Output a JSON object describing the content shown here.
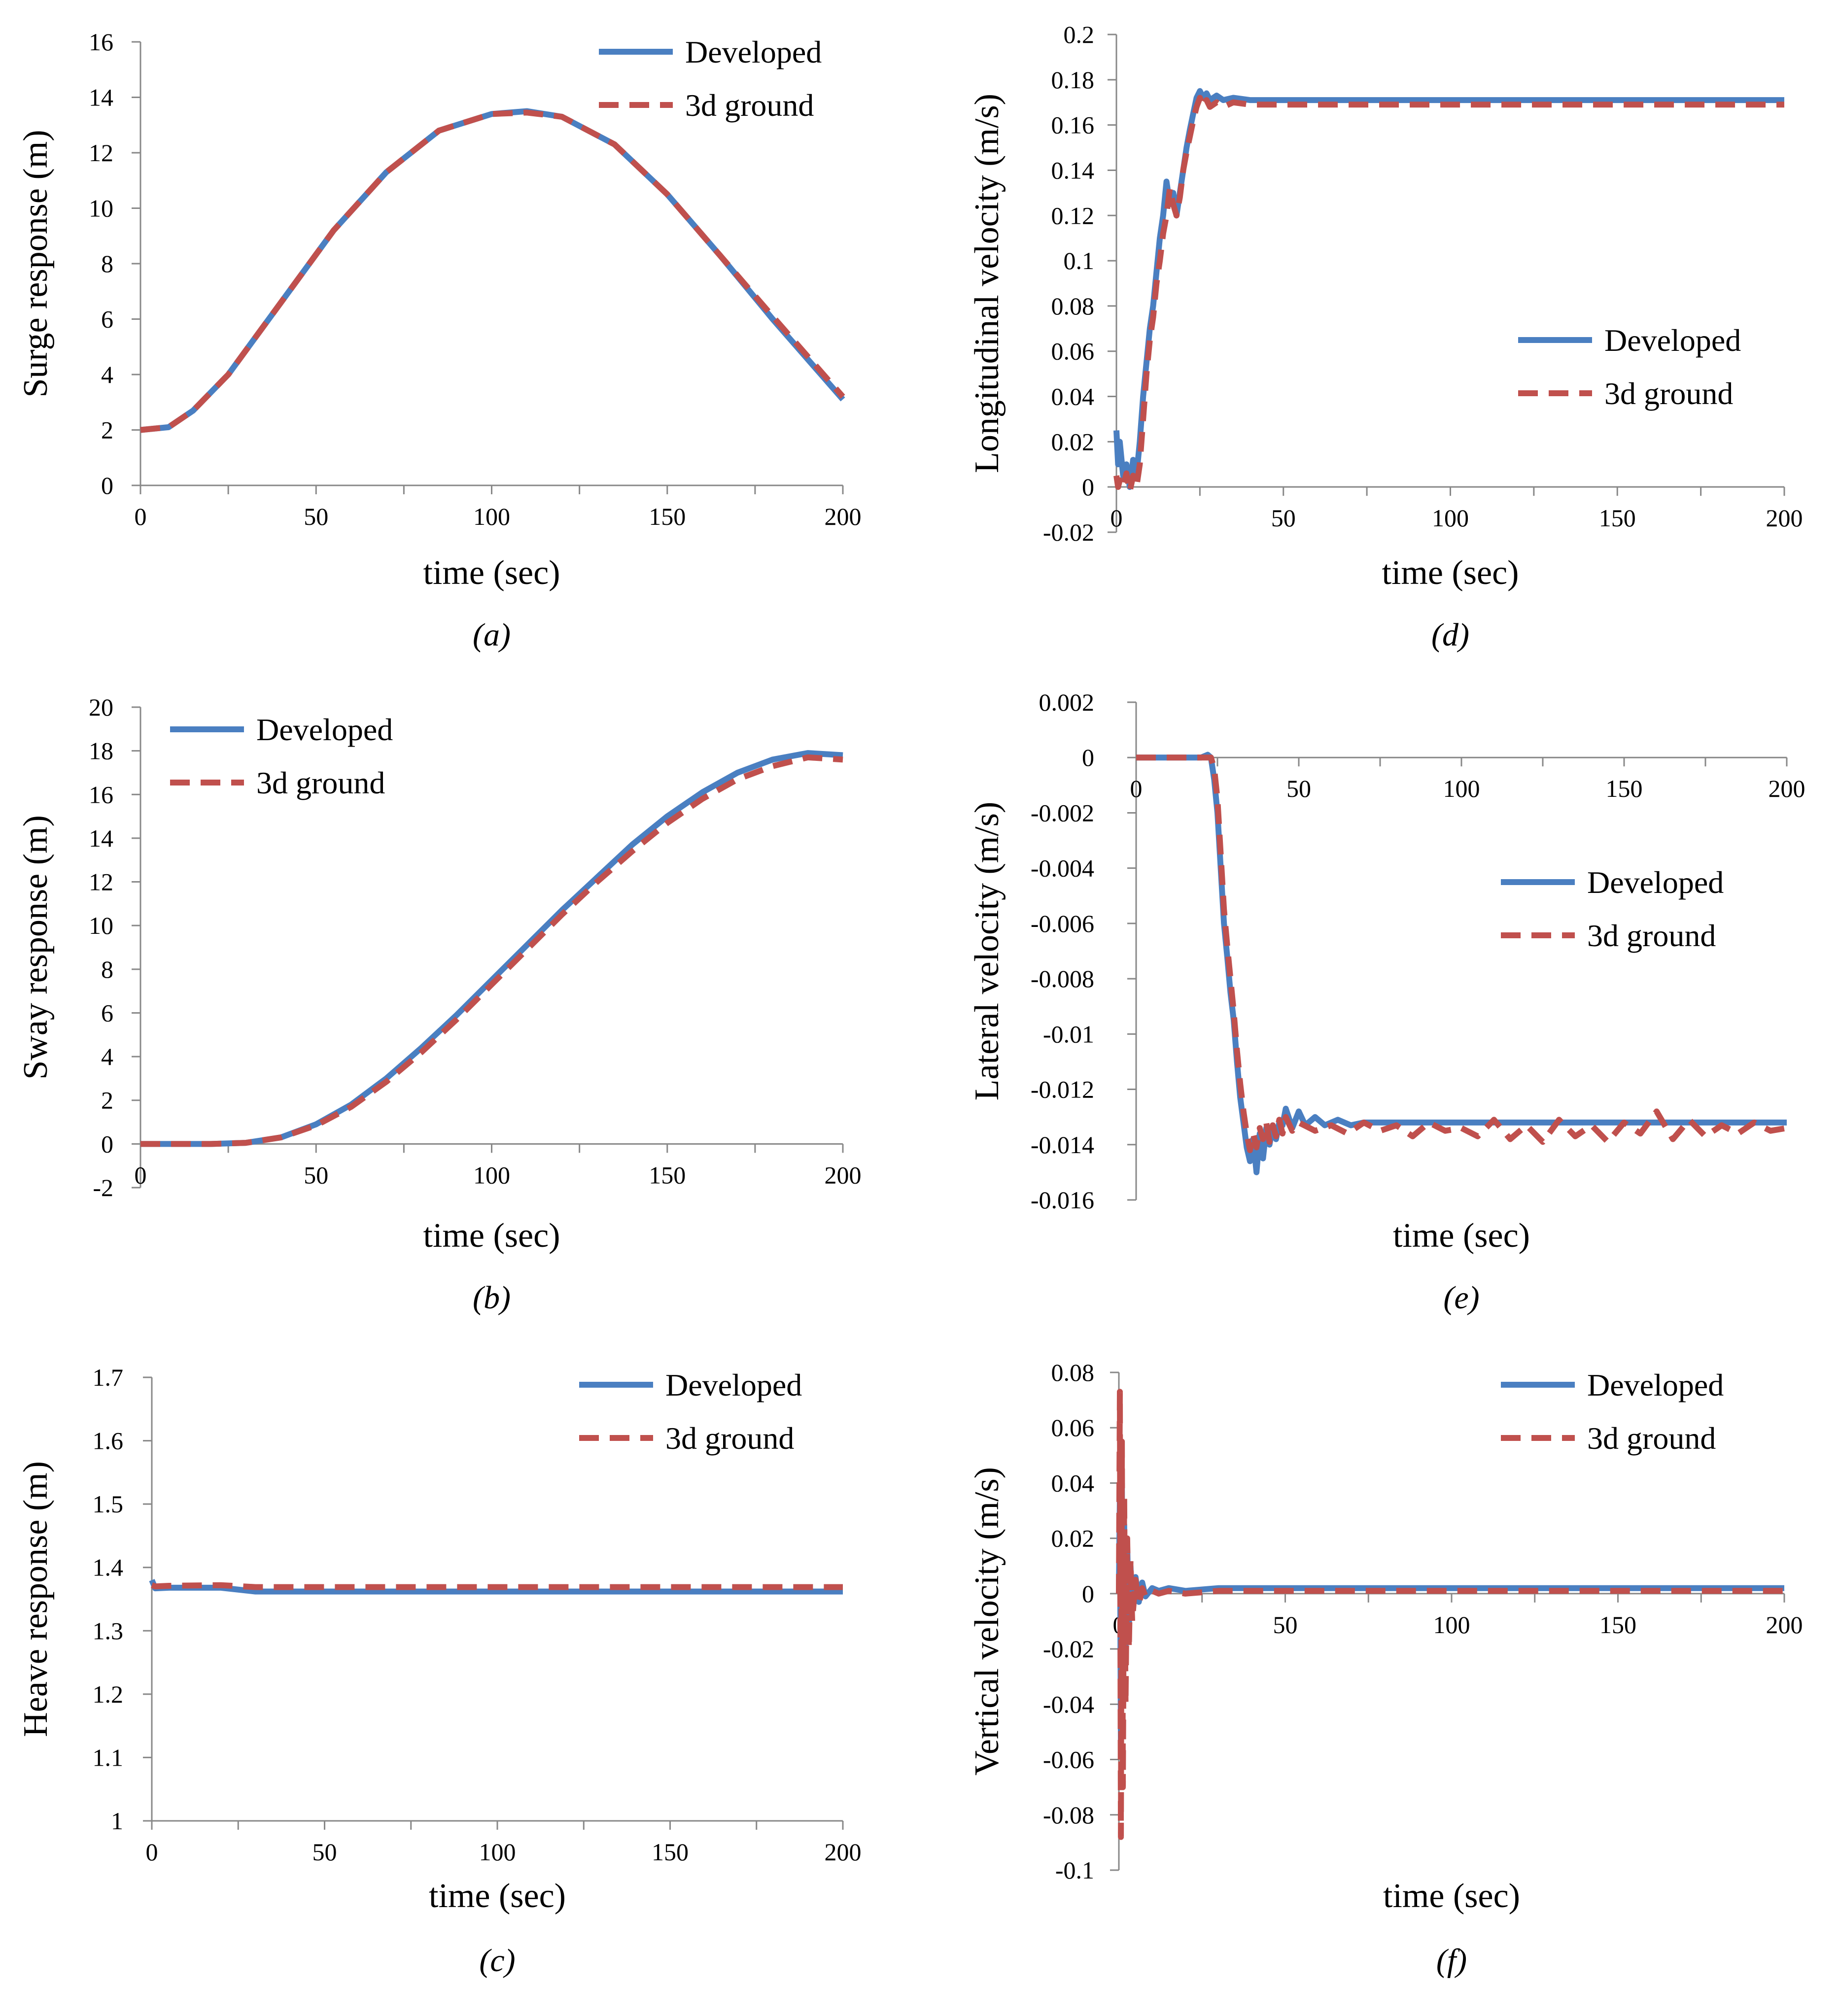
{
  "figure": {
    "description_labels": [
      "(a)",
      "(b)",
      "(c)",
      "(d)",
      "(e)",
      "(f)"
    ]
  },
  "series_styles": {
    "developed": {
      "name": "Developed",
      "color": "#4a7fc1"
    },
    "ground": {
      "name": "3d ground",
      "color": "#c0504d"
    }
  },
  "chart_data": [
    {
      "id": "a",
      "type": "line",
      "panel_label": "(a)",
      "xlabel": "time (sec)",
      "ylabel": "Surge response (m)",
      "xlim": [
        0,
        200
      ],
      "ylim": [
        0,
        16
      ],
      "xticks": [
        0,
        50,
        100,
        150,
        200
      ],
      "xtick_labels": [
        "0",
        "50",
        "100",
        "150",
        "200"
      ],
      "yticks": [
        0,
        2,
        4,
        6,
        8,
        10,
        12,
        14,
        16
      ],
      "ytick_labels": [
        "0",
        "2",
        "4",
        "6",
        "8",
        "10",
        "12",
        "14",
        "16"
      ],
      "legend": {
        "position": "top-right",
        "entries": [
          "Developed",
          "3d ground"
        ]
      },
      "series": [
        {
          "name": "Developed",
          "x": [
            0,
            8,
            15,
            25,
            40,
            55,
            70,
            85,
            100,
            110,
            120,
            135,
            150,
            165,
            180,
            200
          ],
          "y": [
            2.0,
            2.1,
            2.7,
            4.0,
            6.6,
            9.2,
            11.3,
            12.8,
            13.4,
            13.5,
            13.3,
            12.3,
            10.5,
            8.3,
            6.0,
            3.1
          ]
        },
        {
          "name": "3d ground",
          "x": [
            0,
            8,
            15,
            25,
            40,
            55,
            70,
            85,
            100,
            110,
            120,
            135,
            150,
            165,
            180,
            200
          ],
          "y": [
            2.0,
            2.1,
            2.7,
            4.0,
            6.6,
            9.2,
            11.3,
            12.8,
            13.4,
            13.45,
            13.3,
            12.3,
            10.5,
            8.3,
            6.1,
            3.2
          ]
        }
      ]
    },
    {
      "id": "b",
      "type": "line",
      "panel_label": "(b)",
      "xlabel": "time (sec)",
      "ylabel": "Sway response (m)",
      "xlim": [
        0,
        200
      ],
      "ylim": [
        -2,
        20
      ],
      "xticks": [
        0,
        50,
        100,
        150,
        200
      ],
      "xtick_labels": [
        "0",
        "50",
        "100",
        "150",
        "200"
      ],
      "yticks": [
        -2,
        0,
        2,
        4,
        6,
        8,
        10,
        12,
        14,
        16,
        18,
        20
      ],
      "ytick_labels": [
        "-2",
        "0",
        "2",
        "4",
        "6",
        "8",
        "10",
        "12",
        "14",
        "16",
        "18",
        "20"
      ],
      "legend": {
        "position": "top-left",
        "entries": [
          "Developed",
          "3d ground"
        ]
      },
      "series": [
        {
          "name": "Developed",
          "x": [
            0,
            20,
            30,
            40,
            50,
            60,
            70,
            80,
            90,
            100,
            110,
            120,
            130,
            140,
            150,
            160,
            170,
            180,
            190,
            200
          ],
          "y": [
            0,
            0,
            0.05,
            0.3,
            0.9,
            1.8,
            3.0,
            4.4,
            5.9,
            7.5,
            9.1,
            10.7,
            12.2,
            13.7,
            15.0,
            16.1,
            17.0,
            17.6,
            17.9,
            17.8
          ]
        },
        {
          "name": "3d ground",
          "x": [
            0,
            20,
            30,
            40,
            50,
            60,
            70,
            80,
            90,
            100,
            110,
            120,
            130,
            140,
            150,
            160,
            170,
            180,
            190,
            200
          ],
          "y": [
            0,
            0,
            0.05,
            0.3,
            0.85,
            1.7,
            2.85,
            4.2,
            5.7,
            7.3,
            8.9,
            10.5,
            12.0,
            13.4,
            14.7,
            15.8,
            16.7,
            17.3,
            17.7,
            17.6
          ]
        }
      ]
    },
    {
      "id": "c",
      "type": "line",
      "panel_label": "(c)",
      "xlabel": "time (sec)",
      "ylabel": "Heave response (m)",
      "xlim": [
        0,
        200
      ],
      "ylim": [
        1,
        1.7
      ],
      "xticks": [
        0,
        50,
        100,
        150,
        200
      ],
      "xtick_labels": [
        "0",
        "50",
        "100",
        "150",
        "200"
      ],
      "yticks": [
        1,
        1.1,
        1.2,
        1.3,
        1.4,
        1.5,
        1.6,
        1.7
      ],
      "ytick_labels": [
        "1",
        "1.1",
        "1.2",
        "1.3",
        "1.4",
        "1.5",
        "1.6",
        "1.7"
      ],
      "legend": {
        "position": "top-right",
        "entries": [
          "Developed",
          "3d ground"
        ]
      },
      "series": [
        {
          "name": "Developed",
          "x": [
            0,
            1,
            5,
            20,
            30,
            50,
            200
          ],
          "y": [
            1.38,
            1.367,
            1.368,
            1.368,
            1.362,
            1.362,
            1.362
          ]
        },
        {
          "name": "3d ground",
          "x": [
            0,
            1,
            5,
            20,
            30,
            50,
            200
          ],
          "y": [
            1.372,
            1.37,
            1.371,
            1.372,
            1.369,
            1.369,
            1.369
          ]
        }
      ]
    },
    {
      "id": "d",
      "type": "line",
      "panel_label": "(d)",
      "xlabel": "time (sec)",
      "ylabel": "Longitudinal velocity (m/s)",
      "xlim": [
        0,
        200
      ],
      "ylim": [
        -0.02,
        0.2
      ],
      "xticks": [
        0,
        50,
        100,
        150,
        200
      ],
      "xtick_labels": [
        "0",
        "50",
        "100",
        "150",
        "200"
      ],
      "yticks": [
        -0.02,
        0,
        0.02,
        0.04,
        0.06,
        0.08,
        0.1,
        0.12,
        0.14,
        0.16,
        0.18,
        0.2
      ],
      "ytick_labels": [
        "-0.02",
        "0",
        "0.02",
        "0.04",
        "0.06",
        "0.08",
        "0.1",
        "0.12",
        "0.14",
        "0.16",
        "0.18",
        "0.2"
      ],
      "legend": {
        "position": "center-right",
        "entries": [
          "Developed",
          "3d ground"
        ]
      },
      "series": [
        {
          "name": "Developed",
          "x": [
            0,
            0.5,
            1,
            2,
            3,
            4,
            5,
            6,
            7,
            8,
            9,
            10,
            11,
            12,
            13,
            14,
            15,
            16,
            17,
            18,
            19,
            20,
            21,
            22,
            23,
            24,
            25,
            26,
            27,
            28,
            30,
            32,
            35,
            40,
            50,
            60,
            200
          ],
          "y": [
            0.025,
            0.01,
            0.02,
            0.005,
            0.01,
            0.0,
            0.012,
            0.005,
            0.02,
            0.04,
            0.055,
            0.07,
            0.08,
            0.095,
            0.11,
            0.12,
            0.135,
            0.125,
            0.13,
            0.12,
            0.13,
            0.14,
            0.15,
            0.158,
            0.165,
            0.172,
            0.175,
            0.172,
            0.174,
            0.171,
            0.173,
            0.171,
            0.172,
            0.171,
            0.171,
            0.171,
            0.171
          ]
        },
        {
          "name": "3d ground",
          "x": [
            0,
            0.5,
            1,
            2,
            3,
            4,
            5,
            6,
            7,
            8,
            9,
            10,
            11,
            12,
            13,
            14,
            15,
            16,
            17,
            18,
            19,
            20,
            21,
            22,
            23,
            24,
            25,
            26,
            27,
            28,
            30,
            32,
            35,
            40,
            50,
            60,
            200
          ],
          "y": [
            0.005,
            0.0,
            0.003,
            0.0,
            0.006,
            -0.002,
            0.005,
            0.0,
            0.01,
            0.03,
            0.05,
            0.065,
            0.075,
            0.09,
            0.1,
            0.112,
            0.12,
            0.132,
            0.125,
            0.12,
            0.128,
            0.14,
            0.148,
            0.155,
            0.162,
            0.168,
            0.172,
            0.168,
            0.171,
            0.168,
            0.17,
            0.168,
            0.17,
            0.169,
            0.169,
            0.169,
            0.169
          ]
        }
      ]
    },
    {
      "id": "e",
      "type": "line",
      "panel_label": "(e)",
      "xlabel": "time (sec)",
      "ylabel": "Lateral velocity (m/s)",
      "xlim": [
        0,
        200
      ],
      "ylim": [
        -0.016,
        0.002
      ],
      "xticks": [
        0,
        50,
        100,
        150,
        200
      ],
      "xtick_labels": [
        "0",
        "50",
        "100",
        "150",
        "200"
      ],
      "yticks": [
        -0.016,
        -0.014,
        -0.012,
        -0.01,
        -0.008,
        -0.006,
        -0.004,
        -0.002,
        0,
        0.002
      ],
      "ytick_labels": [
        "-0.016",
        "-0.014",
        "-0.012",
        "-0.01",
        "-0.008",
        "-0.006",
        "-0.004",
        "-0.002",
        "0",
        "0.002"
      ],
      "legend": {
        "position": "center-right",
        "entries": [
          "Developed",
          "3d ground"
        ]
      },
      "series": [
        {
          "name": "Developed",
          "x": [
            0,
            20,
            22,
            23,
            24,
            25,
            26,
            27,
            28,
            29,
            30,
            31,
            32,
            33,
            34,
            35,
            36,
            37,
            38,
            39,
            40,
            41,
            42,
            43,
            44,
            45,
            46,
            48,
            50,
            52,
            55,
            58,
            62,
            66,
            70,
            80,
            200
          ],
          "y": [
            0,
            0,
            0.0001,
            0.0,
            -0.0008,
            -0.002,
            -0.004,
            -0.006,
            -0.0072,
            -0.0085,
            -0.0095,
            -0.011,
            -0.0123,
            -0.0132,
            -0.0141,
            -0.0146,
            -0.0138,
            -0.015,
            -0.0136,
            -0.0145,
            -0.0134,
            -0.014,
            -0.0133,
            -0.0138,
            -0.0132,
            -0.0133,
            -0.0127,
            -0.0134,
            -0.0128,
            -0.0133,
            -0.013,
            -0.0133,
            -0.0131,
            -0.0133,
            -0.0132,
            -0.0132,
            -0.0132
          ]
        },
        {
          "name": "3d ground",
          "x": [
            0,
            20,
            22,
            23,
            24,
            25,
            26,
            27,
            28,
            29,
            30,
            31,
            32,
            33,
            34,
            35,
            36,
            37,
            38,
            39,
            40,
            41,
            42,
            43,
            44,
            45,
            46,
            48,
            50,
            55,
            60,
            65,
            70,
            75,
            80,
            85,
            90,
            95,
            100,
            105,
            110,
            115,
            120,
            125,
            130,
            135,
            140,
            145,
            150,
            155,
            160,
            165,
            170,
            175,
            180,
            185,
            190,
            195,
            200
          ],
          "y": [
            0,
            0,
            0.0,
            0.0,
            -0.0004,
            -0.0015,
            -0.0035,
            -0.0055,
            -0.0068,
            -0.008,
            -0.0092,
            -0.0106,
            -0.0118,
            -0.0128,
            -0.0136,
            -0.0142,
            -0.0136,
            -0.0141,
            -0.0134,
            -0.0138,
            -0.0132,
            -0.0139,
            -0.0133,
            -0.0137,
            -0.0131,
            -0.0136,
            -0.013,
            -0.0135,
            -0.0132,
            -0.0135,
            -0.0133,
            -0.0136,
            -0.0132,
            -0.0135,
            -0.0133,
            -0.0137,
            -0.0132,
            -0.0135,
            -0.0134,
            -0.0137,
            -0.0131,
            -0.0138,
            -0.0133,
            -0.0139,
            -0.0131,
            -0.0137,
            -0.0133,
            -0.0139,
            -0.0132,
            -0.0136,
            -0.0128,
            -0.0138,
            -0.0131,
            -0.0137,
            -0.0133,
            -0.0136,
            -0.0132,
            -0.0135,
            -0.0134
          ]
        }
      ]
    },
    {
      "id": "f",
      "type": "line",
      "panel_label": "(f)",
      "xlabel": "time (sec)",
      "ylabel": "Vertical velocity (m/s)",
      "xlim": [
        0,
        200
      ],
      "ylim": [
        -0.1,
        0.08
      ],
      "xticks": [
        0,
        50,
        100,
        150,
        200
      ],
      "xtick_labels": [
        "0",
        "50",
        "100",
        "150",
        "200"
      ],
      "yticks": [
        -0.1,
        -0.08,
        -0.06,
        -0.04,
        -0.02,
        0,
        0.02,
        0.04,
        0.06,
        0.08
      ],
      "ytick_labels": [
        "-0.1",
        "-0.08",
        "-0.06",
        "-0.04",
        "-0.02",
        "0",
        "0.02",
        "0.04",
        "0.06",
        "0.08"
      ],
      "legend": {
        "position": "top-right",
        "entries": [
          "Developed",
          "3d ground"
        ]
      },
      "series": [
        {
          "name": "Developed",
          "x": [
            0,
            0.3,
            0.6,
            0.9,
            1.2,
            1.6,
            2.0,
            2.5,
            3,
            3.5,
            4,
            5,
            6,
            7,
            8,
            10,
            12,
            15,
            20,
            30,
            50,
            200
          ],
          "y": [
            0.0,
            0.035,
            -0.055,
            0.04,
            -0.03,
            0.025,
            -0.02,
            0.018,
            -0.012,
            0.01,
            -0.006,
            0.006,
            -0.003,
            0.004,
            -0.001,
            0.002,
            0.001,
            0.002,
            0.001,
            0.002,
            0.002,
            0.002
          ]
        },
        {
          "name": "3d ground",
          "x": [
            0,
            0.3,
            0.6,
            0.9,
            1.2,
            1.6,
            2.0,
            2.5,
            3,
            3.5,
            4,
            5,
            6,
            7,
            8,
            10,
            12,
            15,
            20,
            30,
            50,
            200
          ],
          "y": [
            0.0,
            0.073,
            -0.088,
            0.055,
            -0.07,
            0.035,
            -0.04,
            0.02,
            -0.02,
            0.012,
            -0.01,
            0.005,
            -0.004,
            0.002,
            -0.001,
            0.001,
            0.0,
            0.001,
            0.0,
            0.001,
            0.001,
            0.001
          ]
        }
      ]
    }
  ]
}
